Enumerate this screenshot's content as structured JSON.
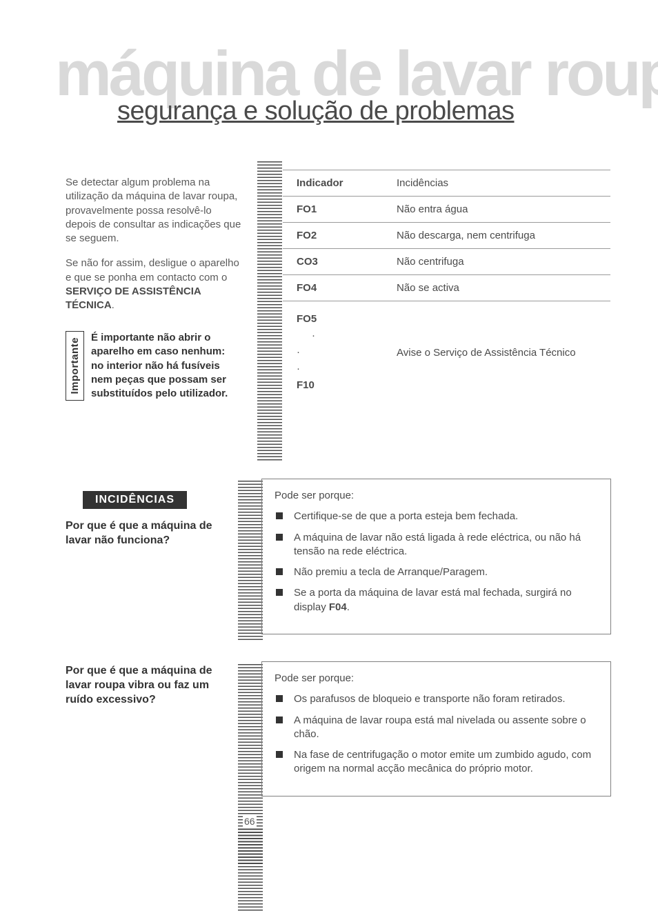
{
  "colors": {
    "watermark": "#d9d9d9",
    "text": "#4a4a4a",
    "muted_text": "#5a5a5a",
    "strong_text": "#333333",
    "rule": "#9a9a9a",
    "box_border": "#808080",
    "incid_bg": "#333333",
    "incid_fg": "#ffffff",
    "page_bg": "#ffffff"
  },
  "typography": {
    "body_family": "Arial, Helvetica, sans-serif",
    "watermark_size_pt": 69,
    "subtitle_size_pt": 29,
    "body_size_pt": 11,
    "heading_size_pt": 12
  },
  "header": {
    "watermark": "máquina de lavar roupa",
    "subtitle": "segurança e solução de problemas"
  },
  "intro": {
    "p1": "Se detectar algum problema na utilização da máquina de lavar roupa, provavelmente possa resolvê-lo depois de consultar as indicações que se seguem.",
    "p2_a": "Se não for assim, desligue o aparelho e que se ponha em contacto com o ",
    "p2_b": "SERVIÇO DE ASSISTÊNCIA TÉCNICA",
    "p2_c": "."
  },
  "importante": {
    "tab": "Importante",
    "text": "É importante não abrir o aparelho em caso nenhum: no interior não há fusíveis nem peças que possam ser substituídos pelo utilizador."
  },
  "table": {
    "head_c1": "Indicador",
    "head_c2": "Incidências",
    "rows": [
      {
        "c1": "FO1",
        "c2": "Não entra água"
      },
      {
        "c1": "FO2",
        "c2": "Não descarga, nem centrifuga"
      },
      {
        "c1": "CO3",
        "c2": "Não centrifuga"
      },
      {
        "c1": "FO4",
        "c2": "Não se activa"
      }
    ],
    "last": {
      "c1_top": "FO5",
      "c1_bot": "F10",
      "c2": "Avise o Serviço de Assistência Técnico"
    }
  },
  "incid_heading": "INCIDÊNCIAS",
  "q1": "Por que é que a máquina de lavar não funciona?",
  "q2": "Por que é que a máquina de lavar roupa vibra ou faz um ruído excessivo?",
  "box1": {
    "lead": "Pode ser porque:",
    "items": [
      "Certifique-se de que a porta esteja bem fechada.",
      "A máquina de lavar não está ligada à rede eléctrica, ou não há tensão na rede eléctrica.",
      "Não premiu a tecla de Arranque/Paragem.",
      "Se a porta da máquina de lavar está mal fechada, surgirá no display "
    ],
    "item4_bold": "F04",
    "item4_tail": "."
  },
  "box2": {
    "lead": "Pode ser porque:",
    "items": [
      "Os parafusos de bloqueio e transporte não foram retirados.",
      "A máquina de lavar roupa está mal nivelada ou assente sobre o chão.",
      "Na fase de centrifugação o motor emite um zumbido agudo, com origem na normal acção mecânica do próprio motor."
    ]
  },
  "page_number": "66"
}
